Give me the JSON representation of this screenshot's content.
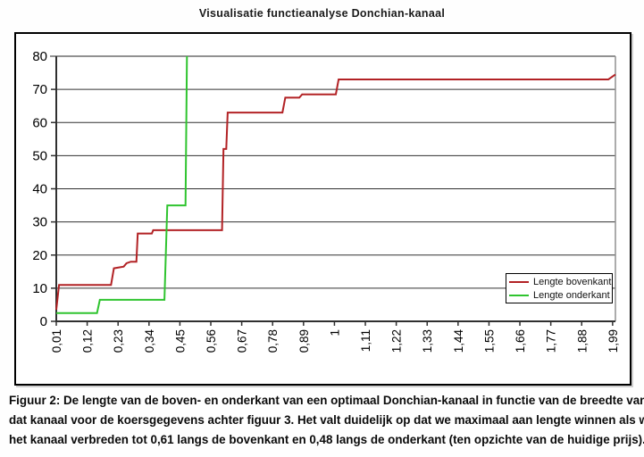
{
  "title": "Visualisatie functieanalyse Donchian-kanaal",
  "legend": {
    "items": [
      {
        "label": "Lengte bovenkant",
        "color": "#b22225"
      },
      {
        "label": "Lengte onderkant",
        "color": "#2fc42f"
      }
    ]
  },
  "caption": {
    "lines": [
      "Figuur 2: De lengte van de boven- en onderkant van een optimaal Donchian-kanaal in functie van de breedte van",
      "dat kanaal voor de koersgegevens achter figuur 3. Het valt duidelijk op dat we maximaal aan lengte winnen als we",
      "het kanaal verbreden tot 0,61 langs de bovenkant en 0,48 langs de onderkant (ten opzichte van de huidige prijs)."
    ]
  },
  "colors": {
    "grid": "#303030",
    "axis": "#303030",
    "plot_border": "#919191",
    "background": "#ffffff",
    "text": "#000000",
    "series_bovenkant": "#b22225",
    "series_onderkant": "#2fc42f"
  },
  "chart_data": {
    "type": "line",
    "title": "Visualisatie functieanalyse Donchian-kanaal",
    "xlabel": "",
    "ylabel": "",
    "xlim": [
      0.01,
      2.0
    ],
    "ylim": [
      0,
      80
    ],
    "grid": "horizontal",
    "legend_position": "inside-right-middle",
    "x_tick_labels": [
      "0,01",
      "0,12",
      "0,23",
      "0,34",
      "0,45",
      "0,56",
      "0,67",
      "0,78",
      "0,89",
      "1",
      "1,11",
      "1,22",
      "1,33",
      "1,44",
      "1,55",
      "1,66",
      "1,77",
      "1,88",
      "1,99"
    ],
    "x_tick_values": [
      0.01,
      0.12,
      0.23,
      0.34,
      0.45,
      0.56,
      0.67,
      0.78,
      0.89,
      1.0,
      1.11,
      1.22,
      1.33,
      1.44,
      1.55,
      1.66,
      1.77,
      1.88,
      1.99
    ],
    "y_ticks": [
      0,
      10,
      20,
      30,
      40,
      50,
      60,
      70,
      80
    ],
    "series": [
      {
        "name": "Lengte bovenkant",
        "color": "#b22225",
        "points": [
          [
            0.01,
            3.5
          ],
          [
            0.02,
            11
          ],
          [
            0.205,
            11
          ],
          [
            0.215,
            16
          ],
          [
            0.25,
            16.5
          ],
          [
            0.26,
            17.5
          ],
          [
            0.275,
            18
          ],
          [
            0.295,
            18
          ],
          [
            0.3,
            26.5
          ],
          [
            0.35,
            26.5
          ],
          [
            0.355,
            27.5
          ],
          [
            0.6,
            27.5
          ],
          [
            0.605,
            52
          ],
          [
            0.615,
            52
          ],
          [
            0.62,
            63
          ],
          [
            0.815,
            63
          ],
          [
            0.825,
            67.5
          ],
          [
            0.875,
            67.5
          ],
          [
            0.885,
            68.5
          ],
          [
            1.005,
            68.5
          ],
          [
            1.015,
            73
          ],
          [
            1.975,
            73
          ],
          [
            2.0,
            74.5
          ]
        ]
      },
      {
        "name": "Lengte onderkant",
        "color": "#2fc42f",
        "points": [
          [
            0.01,
            2.5
          ],
          [
            0.155,
            2.5
          ],
          [
            0.165,
            6.5
          ],
          [
            0.395,
            6.5
          ],
          [
            0.405,
            35
          ],
          [
            0.47,
            35
          ],
          [
            0.475,
            80
          ]
        ]
      }
    ]
  }
}
